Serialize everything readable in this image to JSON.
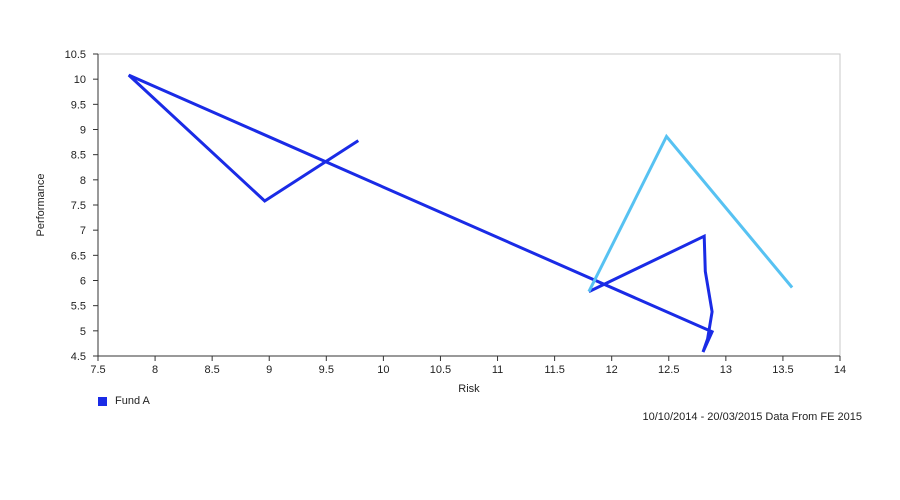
{
  "chart_data": {
    "type": "line",
    "xlabel": "Risk",
    "ylabel": "Performance",
    "xlim": [
      7.5,
      14
    ],
    "ylim": [
      4.5,
      10.5
    ],
    "x_ticks": [
      "7.5",
      "8",
      "8.5",
      "9",
      "9.5",
      "10",
      "10.5",
      "11",
      "11.5",
      "12",
      "12.5",
      "13",
      "13.5",
      "14"
    ],
    "y_ticks": [
      "10.5",
      "10",
      "9.5",
      "9",
      "8.5",
      "8",
      "7.5",
      "7",
      "6.5",
      "6",
      "5.5",
      "5",
      "4.5"
    ],
    "grid": false,
    "legend_position": "bottom-left",
    "series": [
      {
        "name": "Fund A",
        "color": "#1a2be6",
        "points": [
          [
            9.78,
            8.78
          ],
          [
            8.96,
            7.58
          ],
          [
            7.77,
            10.08
          ],
          [
            12.88,
            4.98
          ],
          [
            12.8,
            4.58
          ],
          [
            12.84,
            4.84
          ],
          [
            12.88,
            5.38
          ],
          [
            12.82,
            6.18
          ],
          [
            12.81,
            6.88
          ],
          [
            11.8,
            5.78
          ]
        ]
      },
      {
        "name": "",
        "color": "#3a6fe0",
        "points": []
      },
      {
        "name": "",
        "color": "#57c2f2",
        "points": [
          [
            11.8,
            5.78
          ],
          [
            12.48,
            8.86
          ],
          [
            13.58,
            5.86
          ]
        ]
      }
    ]
  },
  "legend": {
    "label": "Fund A",
    "color": "#1a2be6"
  },
  "footnote": "10/10/2014 - 20/03/2015 Data From FE 2015"
}
